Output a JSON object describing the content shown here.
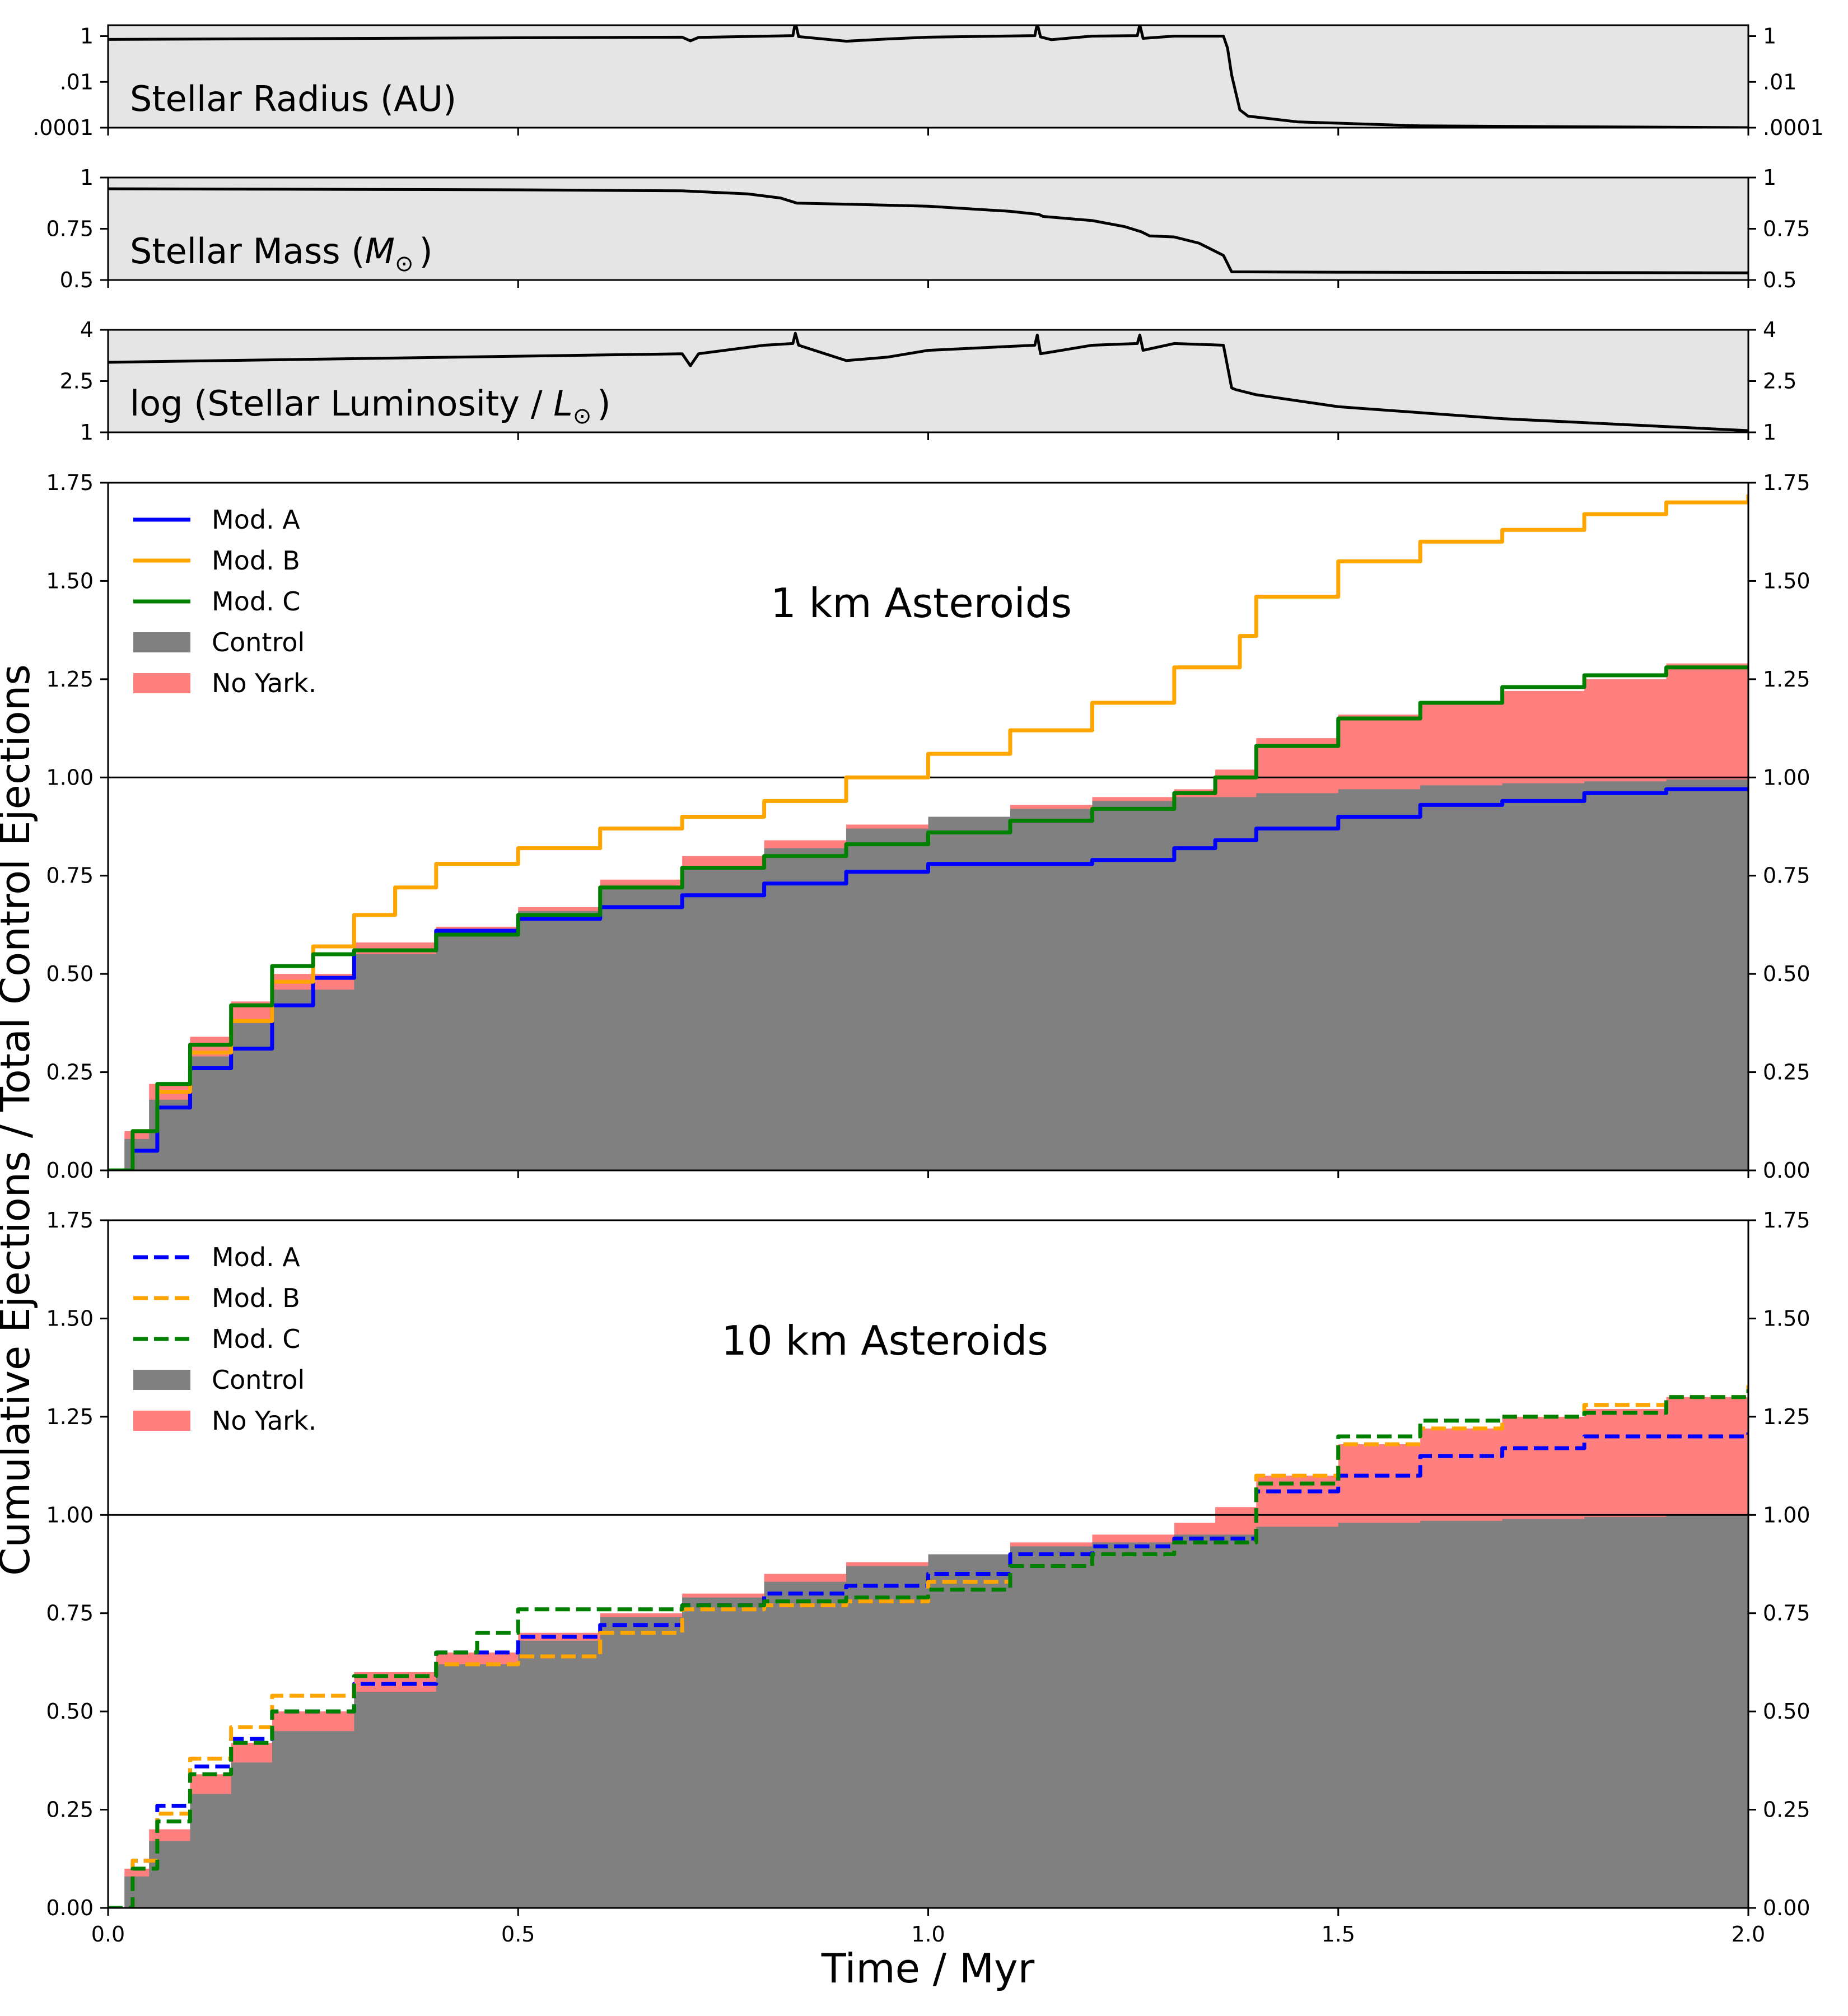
{
  "chart_data": [
    {
      "id": "radius",
      "type": "line",
      "label": "Stellar Radius (AU)",
      "yscale": "log",
      "ylim": [
        0.0001,
        3
      ],
      "yticks": [
        {
          "v": 1,
          "t": "1"
        },
        {
          "v": 0.01,
          "t": ".01"
        },
        {
          "v": 0.0001,
          "t": ".0001"
        }
      ],
      "x": [
        0,
        0.7,
        0.71,
        0.72,
        0.835,
        0.838,
        0.842,
        0.9,
        0.95,
        1.0,
        1.13,
        1.133,
        1.137,
        1.15,
        1.2,
        1.255,
        1.258,
        1.262,
        1.3,
        1.36,
        1.365,
        1.37,
        1.38,
        1.39,
        1.45,
        1.6,
        2.0
      ],
      "y": [
        0.72,
        0.9,
        0.62,
        0.88,
        1.05,
        4,
        0.95,
        0.6,
        0.75,
        0.9,
        1.05,
        3.5,
        0.92,
        0.7,
        1.0,
        1.05,
        3.2,
        0.8,
        1.0,
        1.0,
        0.3,
        0.02,
        0.0006,
        0.00032,
        0.00018,
        0.00012,
        0.0001
      ]
    },
    {
      "id": "mass",
      "type": "line",
      "label_prefix": "Stellar Mass (",
      "label_symbol": "M",
      "label_sub": "⊙",
      "label_suffix": ")",
      "ylim": [
        0.5,
        1
      ],
      "yticks": [
        {
          "v": 1,
          "t": "1"
        },
        {
          "v": 0.75,
          "t": "0.75"
        },
        {
          "v": 0.5,
          "t": "0.5"
        }
      ],
      "x": [
        0,
        0.5,
        0.7,
        0.78,
        0.82,
        0.84,
        0.9,
        1.0,
        1.1,
        1.135,
        1.14,
        1.2,
        1.24,
        1.26,
        1.27,
        1.3,
        1.33,
        1.36,
        1.37,
        1.5,
        2.0
      ],
      "y": [
        0.945,
        0.94,
        0.935,
        0.92,
        0.9,
        0.875,
        0.87,
        0.86,
        0.835,
        0.82,
        0.81,
        0.79,
        0.76,
        0.735,
        0.715,
        0.71,
        0.68,
        0.62,
        0.54,
        0.538,
        0.535
      ]
    },
    {
      "id": "luminosity",
      "type": "line",
      "label_prefix": "log (Stellar Luminosity / ",
      "label_symbol": "L",
      "label_sub": "⊙",
      "label_suffix": ")",
      "ylim": [
        1,
        4
      ],
      "yticks": [
        {
          "v": 4,
          "t": "4"
        },
        {
          "v": 2.5,
          "t": "2.5"
        },
        {
          "v": 1,
          "t": "1"
        }
      ],
      "x": [
        0,
        0.7,
        0.71,
        0.72,
        0.8,
        0.835,
        0.838,
        0.842,
        0.9,
        0.95,
        1.0,
        1.13,
        1.133,
        1.137,
        1.15,
        1.2,
        1.255,
        1.258,
        1.262,
        1.3,
        1.36,
        1.37,
        1.375,
        1.4,
        1.5,
        1.7,
        2.0
      ],
      "y": [
        3.05,
        3.3,
        2.95,
        3.3,
        3.55,
        3.6,
        3.9,
        3.55,
        3.1,
        3.2,
        3.4,
        3.55,
        3.85,
        3.3,
        3.35,
        3.55,
        3.6,
        3.85,
        3.4,
        3.6,
        3.55,
        2.3,
        2.25,
        2.1,
        1.75,
        1.4,
        1.05
      ]
    },
    {
      "id": "asteroids_1km",
      "type": "area",
      "title": "1 km Asteroids",
      "ylim": [
        0,
        1.75
      ],
      "yticks": [
        "0.00",
        "0.25",
        "0.50",
        "0.75",
        "1.00",
        "1.25",
        "1.50",
        "1.75"
      ],
      "hline": 1.0,
      "legend_position": "top-left",
      "legend": [
        {
          "name": "Mod. A",
          "kind": "line",
          "color": "#0000ff",
          "dash": false
        },
        {
          "name": "Mod. B",
          "kind": "line",
          "color": "#ffa500",
          "dash": false
        },
        {
          "name": "Mod. C",
          "kind": "line",
          "color": "#008000",
          "dash": false
        },
        {
          "name": "Control",
          "kind": "patch",
          "color": "#808080"
        },
        {
          "name": "No Yark.",
          "kind": "patch",
          "color": "#ff7f7f"
        }
      ],
      "areas": [
        {
          "name": "No Yark.",
          "color": "#ff7f7f",
          "x": [
            0,
            0.02,
            0.05,
            0.1,
            0.15,
            0.2,
            0.3,
            0.4,
            0.5,
            0.6,
            0.7,
            0.8,
            0.9,
            1.0,
            1.1,
            1.2,
            1.3,
            1.35,
            1.4,
            1.5,
            1.6,
            1.7,
            1.8,
            1.9,
            2.0
          ],
          "y": [
            0,
            0.1,
            0.22,
            0.34,
            0.43,
            0.5,
            0.58,
            0.62,
            0.67,
            0.74,
            0.8,
            0.84,
            0.88,
            0.9,
            0.93,
            0.95,
            0.97,
            1.02,
            1.1,
            1.16,
            1.19,
            1.22,
            1.25,
            1.29,
            1.33
          ]
        },
        {
          "name": "Control",
          "color": "#808080",
          "x": [
            0,
            0.02,
            0.05,
            0.1,
            0.15,
            0.2,
            0.3,
            0.4,
            0.5,
            0.6,
            0.7,
            0.8,
            0.9,
            1.0,
            1.1,
            1.2,
            1.3,
            1.4,
            1.5,
            1.6,
            1.7,
            1.8,
            1.9,
            2.0
          ],
          "y": [
            0,
            0.08,
            0.18,
            0.29,
            0.38,
            0.46,
            0.55,
            0.61,
            0.66,
            0.72,
            0.77,
            0.82,
            0.87,
            0.9,
            0.92,
            0.94,
            0.95,
            0.96,
            0.97,
            0.98,
            0.985,
            0.99,
            0.995,
            1.0
          ]
        }
      ],
      "series": [
        {
          "name": "Mod. A",
          "color": "#0000ff",
          "dash": false,
          "x": [
            0,
            0.03,
            0.06,
            0.1,
            0.15,
            0.2,
            0.25,
            0.3,
            0.4,
            0.5,
            0.6,
            0.7,
            0.8,
            0.9,
            1.0,
            1.1,
            1.2,
            1.3,
            1.35,
            1.4,
            1.5,
            1.6,
            1.7,
            1.8,
            1.9,
            2.0
          ],
          "y": [
            0,
            0.05,
            0.16,
            0.26,
            0.31,
            0.42,
            0.49,
            0.56,
            0.61,
            0.64,
            0.67,
            0.7,
            0.73,
            0.76,
            0.78,
            0.78,
            0.79,
            0.82,
            0.84,
            0.87,
            0.9,
            0.93,
            0.94,
            0.96,
            0.97,
            0.97
          ]
        },
        {
          "name": "Mod. B",
          "color": "#ffa500",
          "dash": false,
          "x": [
            0,
            0.03,
            0.06,
            0.1,
            0.15,
            0.2,
            0.25,
            0.3,
            0.35,
            0.4,
            0.5,
            0.6,
            0.7,
            0.8,
            0.9,
            1.0,
            1.1,
            1.2,
            1.3,
            1.38,
            1.4,
            1.5,
            1.6,
            1.7,
            1.8,
            1.9,
            2.0
          ],
          "y": [
            0,
            0.1,
            0.2,
            0.3,
            0.38,
            0.48,
            0.57,
            0.65,
            0.72,
            0.78,
            0.82,
            0.87,
            0.9,
            0.94,
            1.0,
            1.06,
            1.12,
            1.19,
            1.28,
            1.36,
            1.46,
            1.55,
            1.6,
            1.63,
            1.67,
            1.7,
            1.72
          ]
        },
        {
          "name": "Mod. C",
          "color": "#008000",
          "dash": false,
          "x": [
            0,
            0.03,
            0.06,
            0.1,
            0.15,
            0.2,
            0.25,
            0.3,
            0.4,
            0.5,
            0.6,
            0.7,
            0.8,
            0.9,
            1.0,
            1.1,
            1.2,
            1.3,
            1.35,
            1.4,
            1.5,
            1.6,
            1.7,
            1.8,
            1.9,
            2.0
          ],
          "y": [
            0,
            0.1,
            0.22,
            0.32,
            0.42,
            0.52,
            0.55,
            0.56,
            0.6,
            0.65,
            0.72,
            0.77,
            0.8,
            0.83,
            0.86,
            0.89,
            0.92,
            0.96,
            1.0,
            1.08,
            1.15,
            1.19,
            1.23,
            1.26,
            1.28,
            1.28
          ]
        }
      ]
    },
    {
      "id": "asteroids_10km",
      "type": "area",
      "title": "10 km Asteroids",
      "ylim": [
        0,
        1.75
      ],
      "yticks": [
        "0.00",
        "0.25",
        "0.50",
        "0.75",
        "1.00",
        "1.25",
        "1.50",
        "1.75"
      ],
      "hline": 1.0,
      "legend_position": "top-left",
      "legend": [
        {
          "name": "Mod. A",
          "kind": "line",
          "color": "#0000ff",
          "dash": true
        },
        {
          "name": "Mod. B",
          "kind": "line",
          "color": "#ffa500",
          "dash": true
        },
        {
          "name": "Mod. C",
          "kind": "line",
          "color": "#008000",
          "dash": true
        },
        {
          "name": "Control",
          "kind": "patch",
          "color": "#808080"
        },
        {
          "name": "No Yark.",
          "kind": "patch",
          "color": "#ff7f7f"
        }
      ],
      "areas": [
        {
          "name": "No Yark.",
          "color": "#ff7f7f",
          "x": [
            0,
            0.02,
            0.05,
            0.1,
            0.15,
            0.2,
            0.3,
            0.4,
            0.5,
            0.6,
            0.7,
            0.8,
            0.9,
            1.0,
            1.1,
            1.2,
            1.3,
            1.35,
            1.4,
            1.5,
            1.6,
            1.7,
            1.8,
            1.9,
            2.0
          ],
          "y": [
            0,
            0.1,
            0.2,
            0.34,
            0.42,
            0.5,
            0.6,
            0.65,
            0.7,
            0.75,
            0.8,
            0.85,
            0.88,
            0.9,
            0.93,
            0.95,
            0.98,
            1.02,
            1.1,
            1.18,
            1.22,
            1.25,
            1.27,
            1.3,
            1.32
          ]
        },
        {
          "name": "Control",
          "color": "#808080",
          "x": [
            0,
            0.02,
            0.05,
            0.1,
            0.15,
            0.2,
            0.3,
            0.4,
            0.5,
            0.6,
            0.7,
            0.8,
            0.9,
            1.0,
            1.1,
            1.2,
            1.3,
            1.4,
            1.5,
            1.6,
            1.7,
            1.8,
            1.9,
            2.0
          ],
          "y": [
            0,
            0.08,
            0.17,
            0.29,
            0.37,
            0.45,
            0.55,
            0.62,
            0.68,
            0.74,
            0.79,
            0.83,
            0.87,
            0.9,
            0.92,
            0.93,
            0.95,
            0.97,
            0.98,
            0.985,
            0.99,
            0.995,
            1.0,
            1.0
          ]
        }
      ],
      "series": [
        {
          "name": "Mod. A",
          "color": "#0000ff",
          "dash": true,
          "x": [
            0,
            0.03,
            0.06,
            0.1,
            0.15,
            0.2,
            0.3,
            0.4,
            0.5,
            0.6,
            0.7,
            0.8,
            0.9,
            1.0,
            1.1,
            1.2,
            1.3,
            1.4,
            1.5,
            1.6,
            1.7,
            1.8,
            1.9,
            2.0
          ],
          "y": [
            0,
            0.12,
            0.26,
            0.36,
            0.43,
            0.5,
            0.57,
            0.65,
            0.69,
            0.72,
            0.77,
            0.8,
            0.82,
            0.85,
            0.9,
            0.92,
            0.94,
            1.06,
            1.1,
            1.15,
            1.17,
            1.2,
            1.2,
            1.21
          ]
        },
        {
          "name": "Mod. B",
          "color": "#ffa500",
          "dash": true,
          "x": [
            0,
            0.03,
            0.06,
            0.1,
            0.15,
            0.2,
            0.3,
            0.4,
            0.5,
            0.6,
            0.7,
            0.8,
            0.9,
            1.0,
            1.1,
            1.2,
            1.3,
            1.4,
            1.5,
            1.6,
            1.7,
            1.8,
            1.9,
            2.0
          ],
          "y": [
            0,
            0.12,
            0.24,
            0.38,
            0.46,
            0.54,
            0.59,
            0.62,
            0.64,
            0.7,
            0.76,
            0.77,
            0.78,
            0.83,
            0.87,
            0.9,
            0.93,
            1.1,
            1.18,
            1.22,
            1.25,
            1.28,
            1.3,
            1.33
          ]
        },
        {
          "name": "Mod. C",
          "color": "#008000",
          "dash": true,
          "x": [
            0,
            0.03,
            0.06,
            0.1,
            0.15,
            0.2,
            0.3,
            0.4,
            0.45,
            0.5,
            0.6,
            0.7,
            0.8,
            0.9,
            1.0,
            1.1,
            1.2,
            1.3,
            1.4,
            1.5,
            1.6,
            1.7,
            1.8,
            1.9,
            2.0
          ],
          "y": [
            0,
            0.1,
            0.22,
            0.34,
            0.42,
            0.5,
            0.59,
            0.65,
            0.7,
            0.76,
            0.76,
            0.77,
            0.78,
            0.79,
            0.81,
            0.87,
            0.9,
            0.93,
            1.08,
            1.2,
            1.24,
            1.25,
            1.26,
            1.3,
            1.32
          ]
        }
      ]
    }
  ],
  "xaxis": {
    "label": "Time / Myr",
    "xlim": [
      0,
      2
    ],
    "ticks": [
      "0.0",
      "0.5",
      "1.0",
      "1.5",
      "2.0"
    ]
  },
  "ylabel": "Cumulative Ejections / Total Control Ejections",
  "colors": {
    "stellar_panel_bg": "#e5e5e5",
    "line_black": "#000000"
  }
}
